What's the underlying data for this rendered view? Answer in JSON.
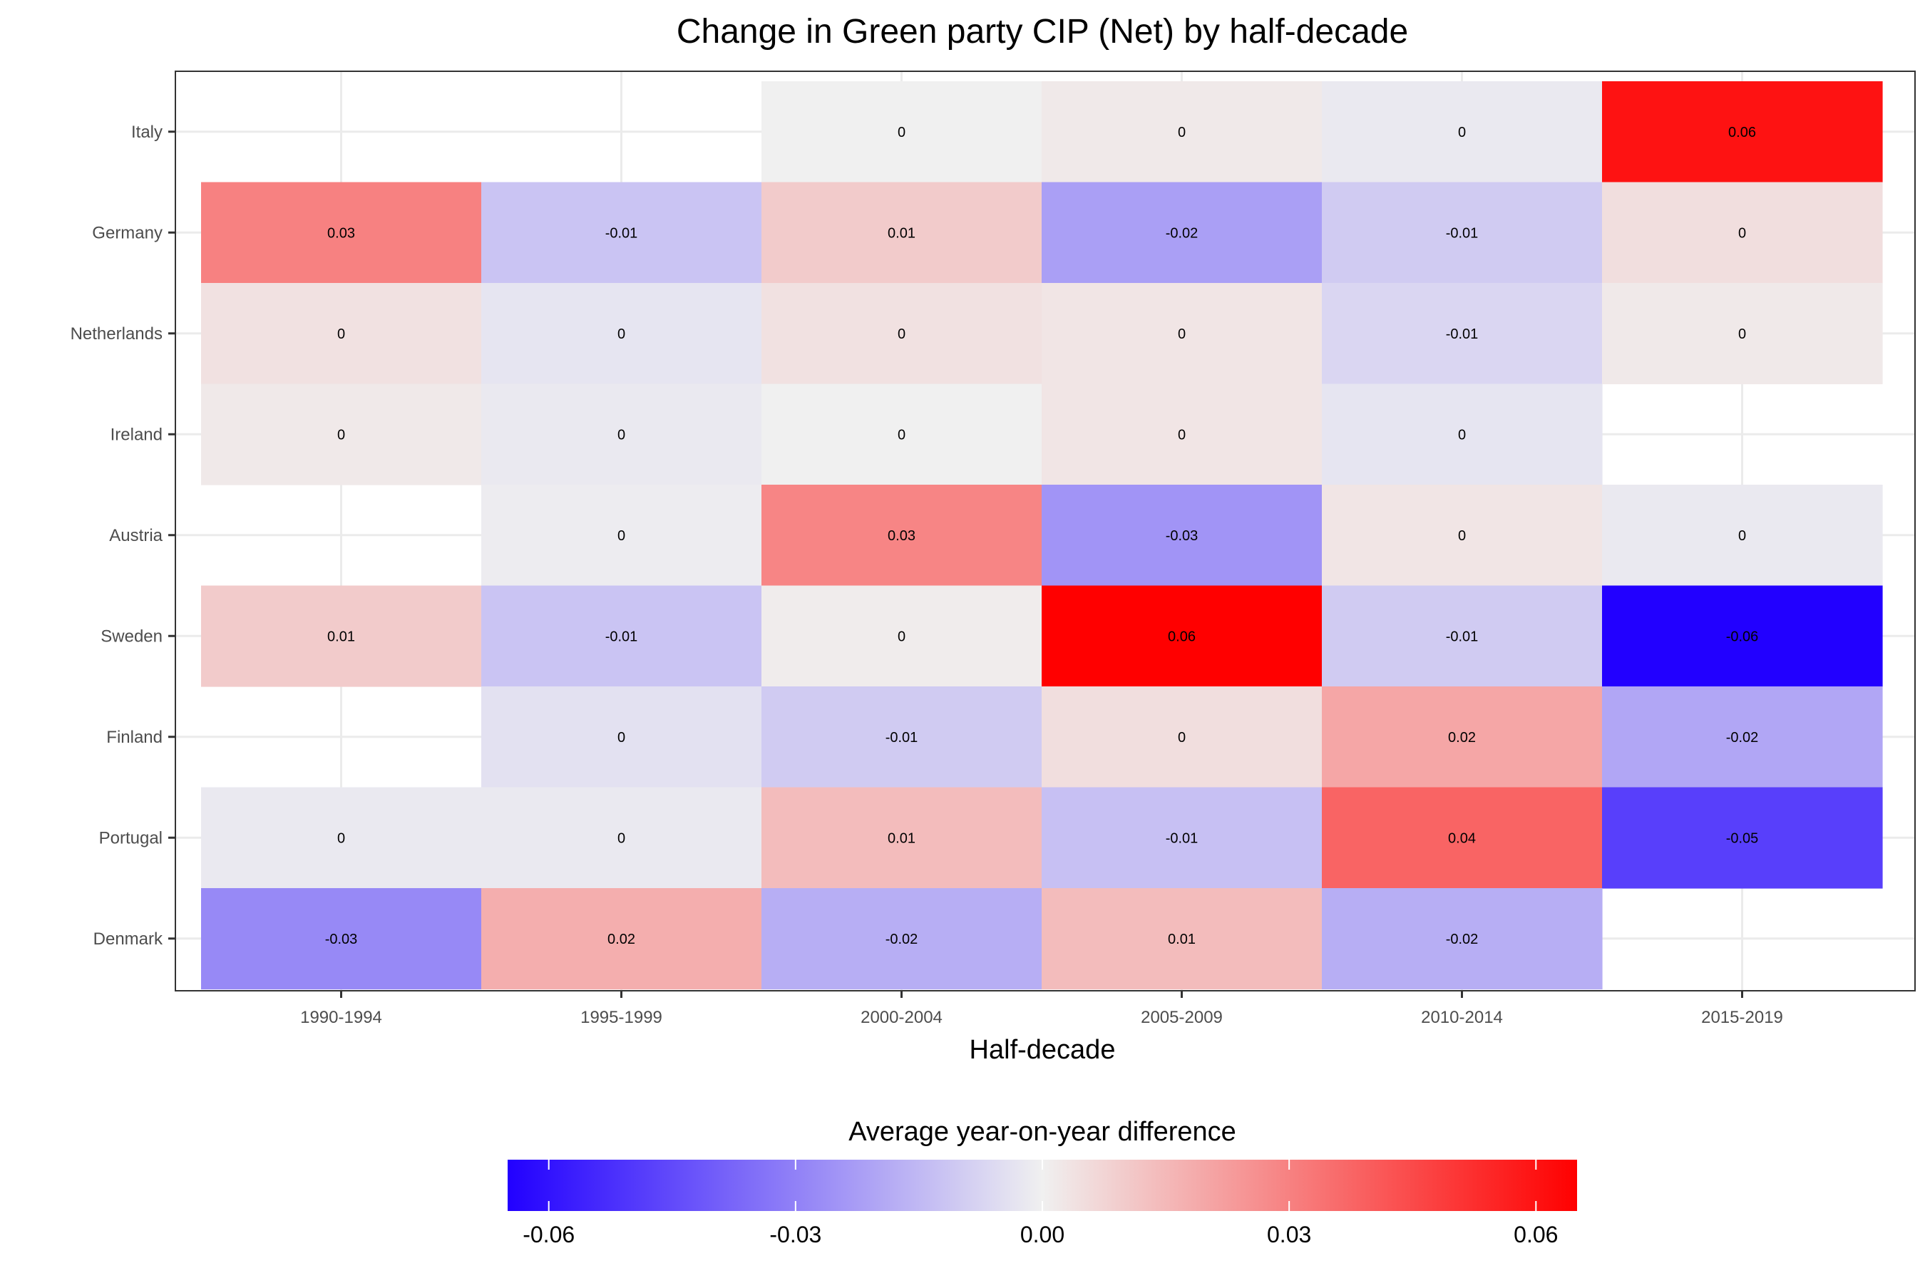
{
  "chart_data": {
    "type": "heatmap",
    "title": "Change in Green party CIP (Net) by half-decade",
    "xlabel": "Half-decade",
    "ylabel": "",
    "x_categories": [
      "1990-1994",
      "1995-1999",
      "2000-2004",
      "2005-2009",
      "2010-2014",
      "2015-2019"
    ],
    "y_categories": [
      "Italy",
      "Germany",
      "Netherlands",
      "Ireland",
      "Austria",
      "Sweden",
      "Finland",
      "Portugal",
      "Denmark"
    ],
    "values": [
      [
        null,
        null,
        0.0,
        0.002,
        -0.002,
        0.06
      ],
      [
        0.03,
        -0.012,
        0.01,
        -0.022,
        -0.01,
        0.005
      ],
      [
        0.004,
        -0.003,
        0.004,
        0.003,
        -0.007,
        0.002
      ],
      [
        0.002,
        -0.002,
        0.0,
        0.003,
        -0.003,
        null
      ],
      [
        null,
        -0.001,
        0.029,
        -0.025,
        0.003,
        -0.002
      ],
      [
        0.01,
        -0.012,
        0.001,
        0.065,
        -0.01,
        -0.065
      ],
      [
        null,
        -0.004,
        -0.01,
        0.005,
        0.02,
        -0.02
      ],
      [
        -0.002,
        -0.002,
        0.014,
        -0.013,
        0.038,
        -0.048
      ],
      [
        -0.028,
        0.018,
        -0.018,
        0.014,
        -0.018,
        null
      ]
    ],
    "labels": [
      [
        null,
        null,
        "0",
        "0",
        "0",
        "0.06"
      ],
      [
        "0.03",
        "-0.01",
        "0.01",
        "-0.02",
        "-0.01",
        "0"
      ],
      [
        "0",
        "0",
        "0",
        "0",
        "-0.01",
        "0"
      ],
      [
        "0",
        "0",
        "0",
        "0",
        "0",
        null
      ],
      [
        null,
        "0",
        "0.03",
        "-0.03",
        "0",
        "0"
      ],
      [
        "0.01",
        "-0.01",
        "0",
        "0.06",
        "-0.01",
        "-0.06"
      ],
      [
        null,
        "0",
        "-0.01",
        "0",
        "0.02",
        "-0.02"
      ],
      [
        "0",
        "0",
        "0.01",
        "-0.01",
        "0.04",
        "-0.05"
      ],
      [
        "-0.03",
        "0.02",
        "-0.02",
        "0.01",
        "-0.02",
        null
      ]
    ],
    "color_scale": {
      "low": "#2200ff",
      "mid": "#f0f0f0",
      "high": "#ff0000",
      "limits": [
        -0.065,
        0.065
      ]
    },
    "legend": {
      "title": "Average year-on-year difference",
      "position": "bottom",
      "ticks": [
        -0.06,
        -0.03,
        0.0,
        0.03,
        0.06
      ],
      "tick_labels": [
        "-0.06",
        "-0.03",
        "0.00",
        "0.03",
        "0.06"
      ]
    },
    "grid": true,
    "theme": "bw"
  }
}
